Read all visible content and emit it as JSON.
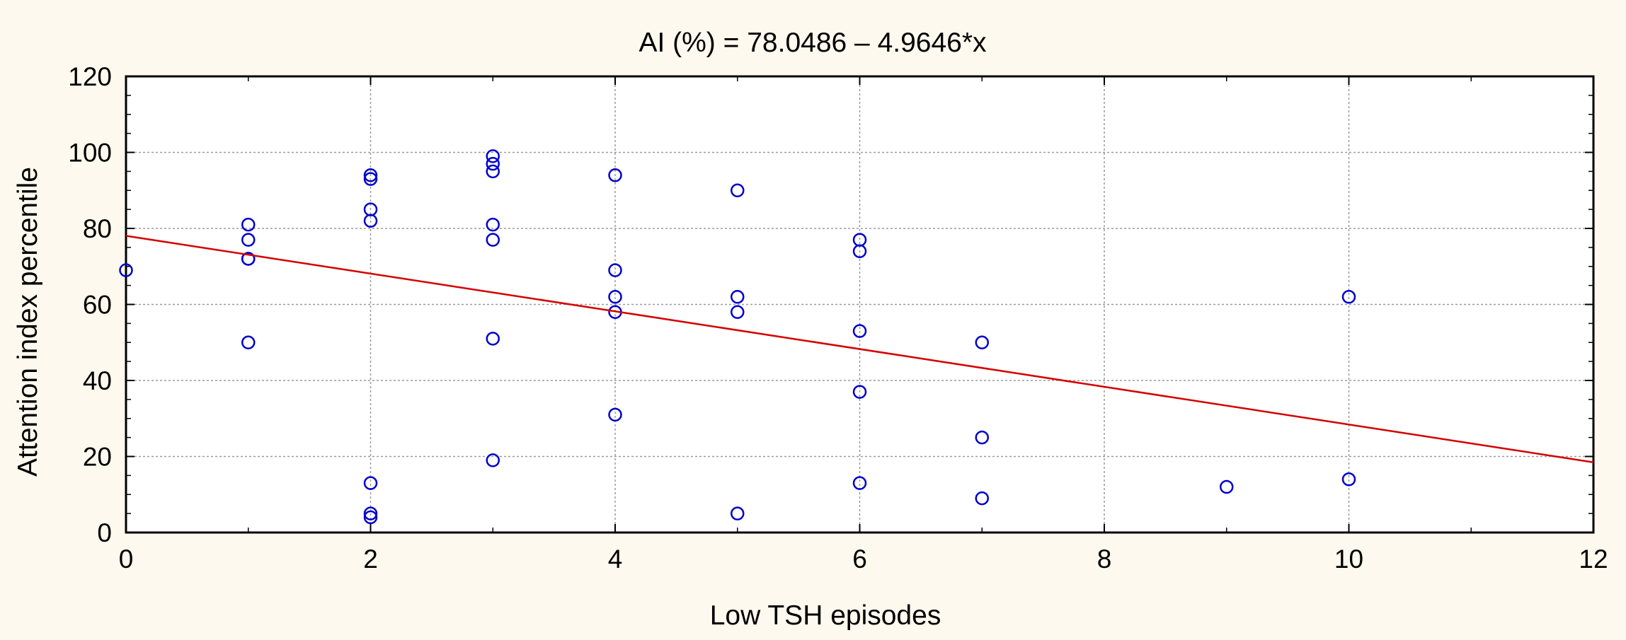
{
  "chart_data": {
    "type": "scatter",
    "title": "AI (%) = 78.0486 – 4.9646*x",
    "xlabel": "Low TSH episodes",
    "ylabel": "Attention index percentile",
    "xlim": [
      0,
      12
    ],
    "ylim": [
      0,
      120
    ],
    "x_ticks": [
      "0",
      "2",
      "4",
      "6",
      "8",
      "10",
      "12"
    ],
    "y_ticks": [
      "0",
      "20",
      "40",
      "60",
      "80",
      "100",
      "120"
    ],
    "grid": true,
    "series": [
      {
        "color": "#0000cc",
        "marker": "open-circle",
        "points": [
          [
            0,
            69
          ],
          [
            1,
            81
          ],
          [
            1,
            77
          ],
          [
            1,
            72
          ],
          [
            1,
            72
          ],
          [
            1,
            50
          ],
          [
            2,
            94
          ],
          [
            2,
            93
          ],
          [
            2,
            85
          ],
          [
            2,
            82
          ],
          [
            2,
            13
          ],
          [
            2,
            5
          ],
          [
            2,
            4
          ],
          [
            3,
            99
          ],
          [
            3,
            97
          ],
          [
            3,
            95
          ],
          [
            3,
            81
          ],
          [
            3,
            77
          ],
          [
            3,
            51
          ],
          [
            3,
            19
          ],
          [
            4,
            94
          ],
          [
            4,
            69
          ],
          [
            4,
            62
          ],
          [
            4,
            58
          ],
          [
            4,
            31
          ],
          [
            5,
            90
          ],
          [
            5,
            62
          ],
          [
            5,
            58
          ],
          [
            5,
            5
          ],
          [
            6,
            77
          ],
          [
            6,
            74
          ],
          [
            6,
            53
          ],
          [
            6,
            37
          ],
          [
            6,
            13
          ],
          [
            7,
            50
          ],
          [
            7,
            25
          ],
          [
            7,
            9
          ],
          [
            9,
            12
          ],
          [
            10,
            62
          ],
          [
            10,
            14
          ]
        ]
      }
    ],
    "fit_line": {
      "color": "#d40000",
      "intercept": 78.0486,
      "slope": -4.9646
    }
  }
}
